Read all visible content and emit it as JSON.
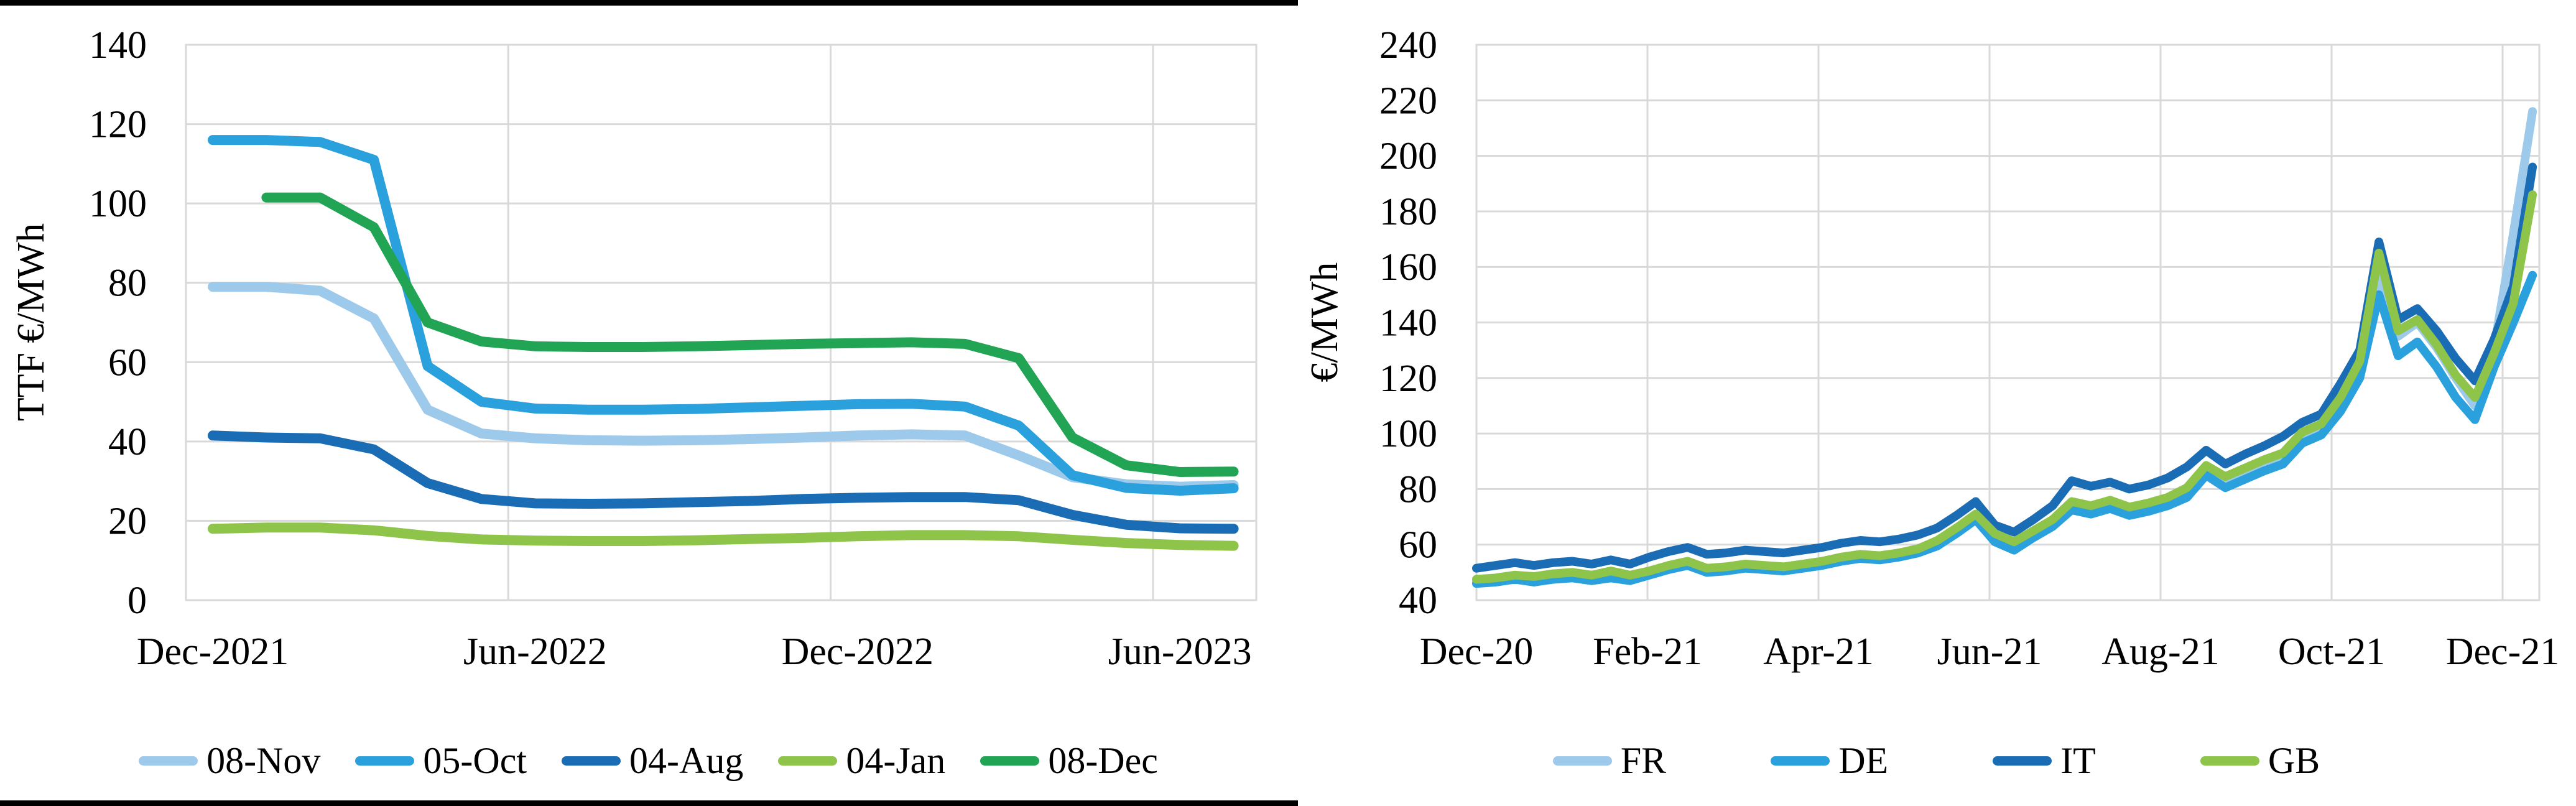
{
  "figure": {
    "background": "#ffffff",
    "left_panel_rule_color": "#000000",
    "gridline_color": "#d9d9d9",
    "palette": {
      "light_blue": "#9dc9eb",
      "medium_blue": "#2aa0dc",
      "dark_blue": "#1a6db5",
      "light_green": "#8dc449",
      "green": "#21a453"
    }
  },
  "chart_data": [
    {
      "type": "line",
      "title": "",
      "y_axis": {
        "title": "TTF €/MWh",
        "min": 0,
        "max": 140,
        "step": 20,
        "tick_labels": [
          "0",
          "20",
          "40",
          "60",
          "80",
          "100",
          "120",
          "140"
        ]
      },
      "x_axis": {
        "tick_labels": [
          "Dec-2021",
          "Jun-2022",
          "Dec-2022",
          "Jun-2023"
        ],
        "tick_months": [
          0,
          6,
          12,
          18
        ],
        "gridline_months": [
          5.5,
          11.5,
          17.5
        ],
        "months_span": 19
      },
      "legend_position": "bottom",
      "grid": true,
      "series": [
        {
          "name": "08-Nov",
          "color": "#9dc9eb",
          "start_month": 0,
          "values": [
            79,
            79,
            78,
            71,
            48,
            42,
            40.8,
            40.3,
            40.2,
            40.3,
            40.6,
            41,
            41.5,
            41.8,
            41.5,
            36.5,
            31,
            29.2,
            28.6,
            29
          ]
        },
        {
          "name": "05-Oct",
          "color": "#2aa0dc",
          "start_month": 0,
          "values": [
            116,
            116,
            115.5,
            111,
            59,
            50,
            48.3,
            48,
            48,
            48.2,
            48.6,
            49,
            49.4,
            49.5,
            48.8,
            44,
            31.5,
            28.3,
            27.6,
            28.2
          ]
        },
        {
          "name": "04-Aug",
          "color": "#1a6db5",
          "start_month": 0,
          "values": [
            41.5,
            41,
            40.8,
            38,
            29.5,
            25.5,
            24.4,
            24.3,
            24.4,
            24.7,
            25,
            25.5,
            25.8,
            26,
            26,
            25.2,
            21.5,
            19,
            18.1,
            18
          ]
        },
        {
          "name": "04-Jan",
          "color": "#8dc449",
          "start_month": 0,
          "values": [
            18,
            18.3,
            18.3,
            17.6,
            16.2,
            15.3,
            15,
            14.9,
            14.9,
            15.1,
            15.4,
            15.7,
            16.1,
            16.4,
            16.4,
            16.1,
            15.2,
            14.4,
            13.9,
            13.7
          ]
        },
        {
          "name": "08-Dec",
          "color": "#21a453",
          "start_month": 1,
          "values": [
            101.5,
            101.5,
            94,
            70,
            65.2,
            64,
            63.8,
            63.8,
            64,
            64.3,
            64.6,
            64.8,
            65,
            64.6,
            61,
            41,
            34,
            32.3,
            32.4
          ]
        }
      ]
    },
    {
      "type": "line",
      "title": "",
      "y_axis": {
        "title": "€/MWh",
        "min": 40,
        "max": 240,
        "step": 20,
        "tick_labels": [
          "40",
          "60",
          "80",
          "100",
          "120",
          "140",
          "160",
          "180",
          "200",
          "220",
          "240"
        ]
      },
      "x_axis": {
        "tick_labels": [
          "Dec-20",
          "Feb-21",
          "Apr-21",
          "Jun-21",
          "Aug-21",
          "Oct-21",
          "Dec-21"
        ],
        "tick_months": [
          0,
          2,
          4,
          6,
          8,
          10,
          12
        ],
        "gridline_months": [
          2,
          4,
          6,
          8,
          10,
          12
        ],
        "months_span": 12.35
      },
      "legend_position": "bottom",
      "grid": true,
      "series": [
        {
          "name": "FR",
          "color": "#9dc9eb",
          "values": [
            47,
            47.5,
            48.5,
            48,
            49,
            49.5,
            48.5,
            49.5,
            48.5,
            50,
            52,
            53.5,
            51,
            51.5,
            52.5,
            52,
            51.5,
            52.5,
            53.5,
            55,
            56,
            55.5,
            56.5,
            58,
            60.5,
            65,
            70,
            63,
            60,
            64,
            68,
            74,
            73,
            75,
            72.5,
            74,
            76,
            79,
            87,
            83,
            86,
            89,
            92,
            99,
            102,
            112,
            125,
            158,
            135,
            140,
            131,
            120,
            110,
            131,
            172,
            216
          ]
        },
        {
          "name": "DE",
          "color": "#2aa0dc",
          "values": [
            46,
            46.5,
            47.5,
            46.5,
            47.5,
            48,
            47,
            48,
            47,
            49,
            51,
            52.5,
            50,
            50.5,
            51.5,
            51,
            50.5,
            51.5,
            52.5,
            54,
            55,
            54.5,
            55.5,
            57,
            59.5,
            64,
            69,
            61,
            58,
            62.5,
            66.5,
            72.5,
            71,
            73,
            70.5,
            72,
            74,
            77,
            85,
            80.5,
            83.5,
            86.5,
            89,
            96.5,
            99.5,
            108,
            120,
            150,
            128,
            133,
            124,
            113,
            105,
            124,
            140,
            157
          ]
        },
        {
          "name": "IT",
          "color": "#1a6db5",
          "values": [
            51.5,
            52.5,
            53.5,
            52.5,
            53.5,
            54,
            53,
            54.5,
            53,
            55.5,
            57.5,
            59,
            56.5,
            57,
            58,
            57.5,
            57,
            58,
            59,
            60.5,
            61.5,
            61,
            62,
            63.5,
            66,
            70.5,
            75.5,
            67,
            64.5,
            69,
            74,
            83,
            81,
            82.5,
            80,
            81.5,
            84,
            88,
            94,
            89,
            92.5,
            95.5,
            99,
            104,
            107,
            118,
            130,
            169,
            141,
            145,
            137,
            127,
            119,
            134,
            153,
            196
          ]
        },
        {
          "name": "GB",
          "color": "#8dc449",
          "values": [
            47.5,
            48,
            49,
            48.5,
            49.5,
            50,
            49,
            50.5,
            49,
            50.5,
            52.5,
            54,
            51.5,
            52,
            53,
            52.5,
            52,
            53,
            54,
            55.5,
            56.5,
            56,
            57,
            58.5,
            61.5,
            66,
            71,
            64,
            61,
            65,
            69,
            75.5,
            74,
            76,
            73.5,
            75,
            77,
            80.5,
            88.5,
            84.5,
            87.5,
            90.5,
            93,
            100.5,
            103.5,
            113,
            126,
            165,
            137,
            141,
            132,
            121,
            113,
            129,
            147,
            186
          ]
        }
      ]
    }
  ]
}
